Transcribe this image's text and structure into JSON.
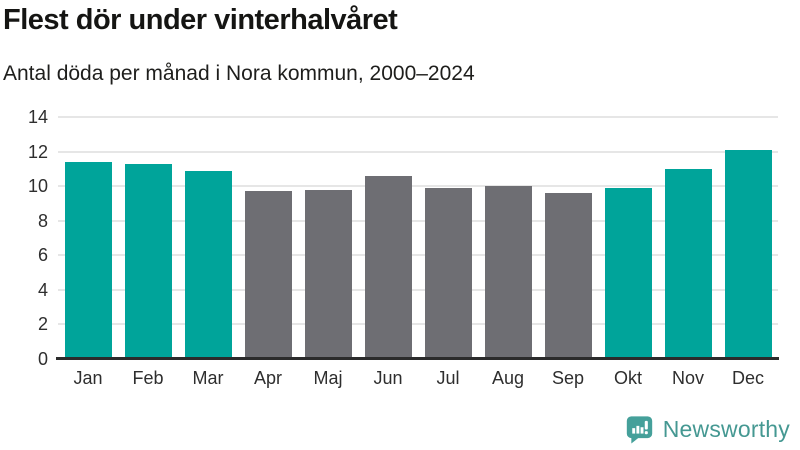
{
  "header": {
    "title": "Flest dör under vinterhalvåret",
    "subtitle": "Antal döda per månad i Nora kommun, 2000–2024"
  },
  "chart_data": {
    "type": "bar",
    "title": "Flest dör under vinterhalvåret",
    "subtitle": "Antal döda per månad i Nora kommun, 2000–2024",
    "categories": [
      "Jan",
      "Feb",
      "Mar",
      "Apr",
      "Maj",
      "Jun",
      "Jul",
      "Aug",
      "Sep",
      "Okt",
      "Nov",
      "Dec"
    ],
    "values": [
      11.4,
      11.3,
      10.9,
      9.7,
      9.8,
      10.6,
      9.9,
      10.0,
      9.6,
      9.9,
      11.0,
      12.1
    ],
    "winter_months": [
      "Jan",
      "Feb",
      "Mar",
      "Okt",
      "Nov",
      "Dec"
    ],
    "colors": {
      "winter_bar": "#00a49a",
      "summer_bar": "#6e6e73",
      "gridline": "#e6e6e6",
      "axis_line": "#2b2b2b"
    },
    "xlabel": "",
    "ylabel": "",
    "ylim": [
      0,
      14
    ],
    "yticks": [
      0,
      2,
      4,
      6,
      8,
      10,
      12,
      14
    ],
    "grid": true,
    "legend": false
  },
  "footer": {
    "brand": "Newsworthy",
    "logo_icon": "newsworthy-speech-bubble-bar-chart-icon",
    "brand_color": "#459892",
    "logo_fill": "#45a09a"
  }
}
